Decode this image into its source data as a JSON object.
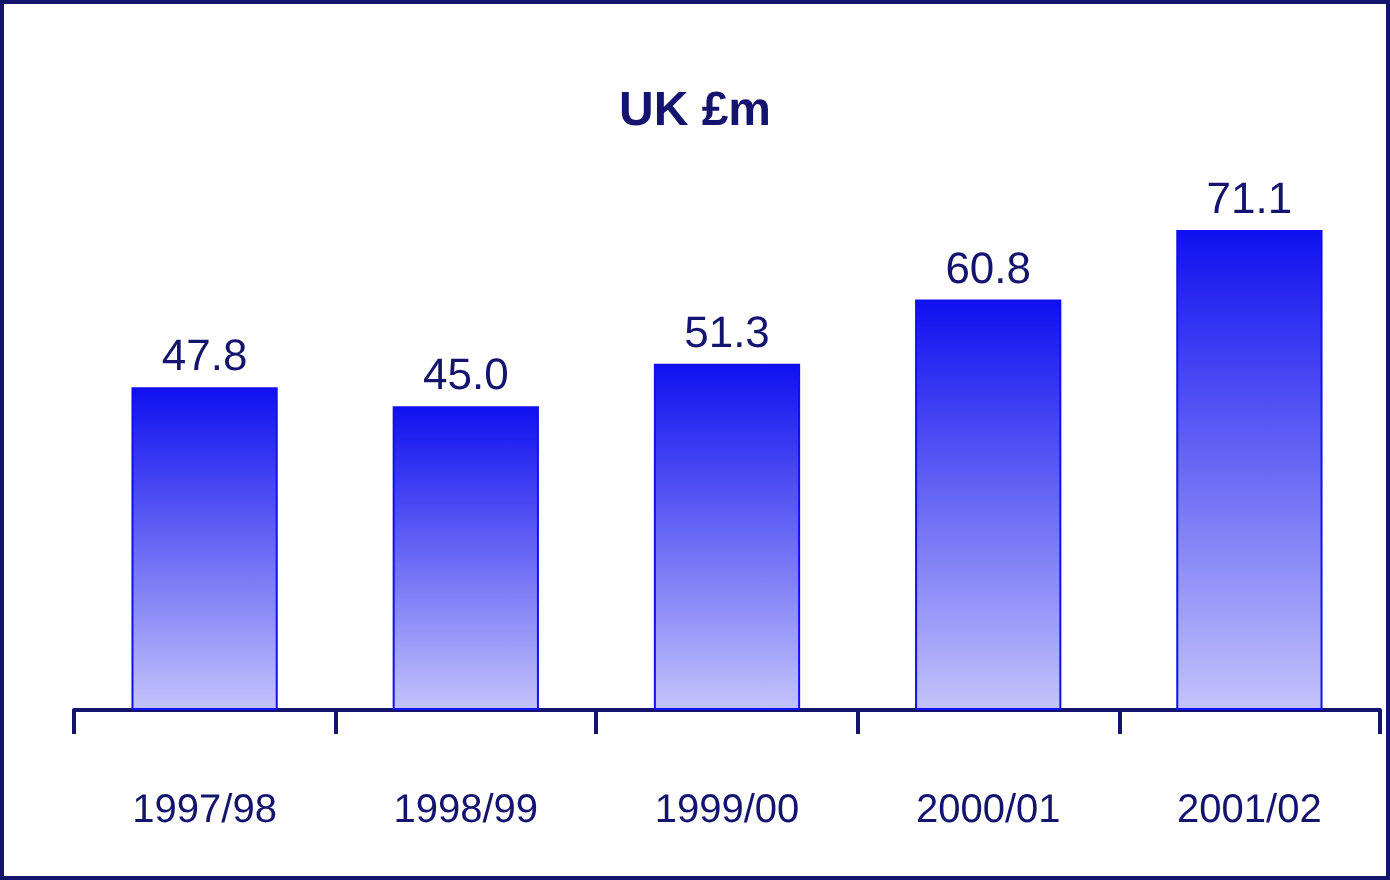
{
  "chart_data": {
    "type": "bar",
    "title": "UK £m",
    "categories": [
      "1997/98",
      "1998/99",
      "1999/00",
      "2000/01",
      "2001/02"
    ],
    "values": [
      47.8,
      45.0,
      51.3,
      60.8,
      71.1
    ],
    "color": "#1010f0",
    "value_labels": [
      "47.8",
      "45.0",
      "51.3",
      "60.8",
      "71.1"
    ],
    "grid": false,
    "tick_labels": "x"
  }
}
